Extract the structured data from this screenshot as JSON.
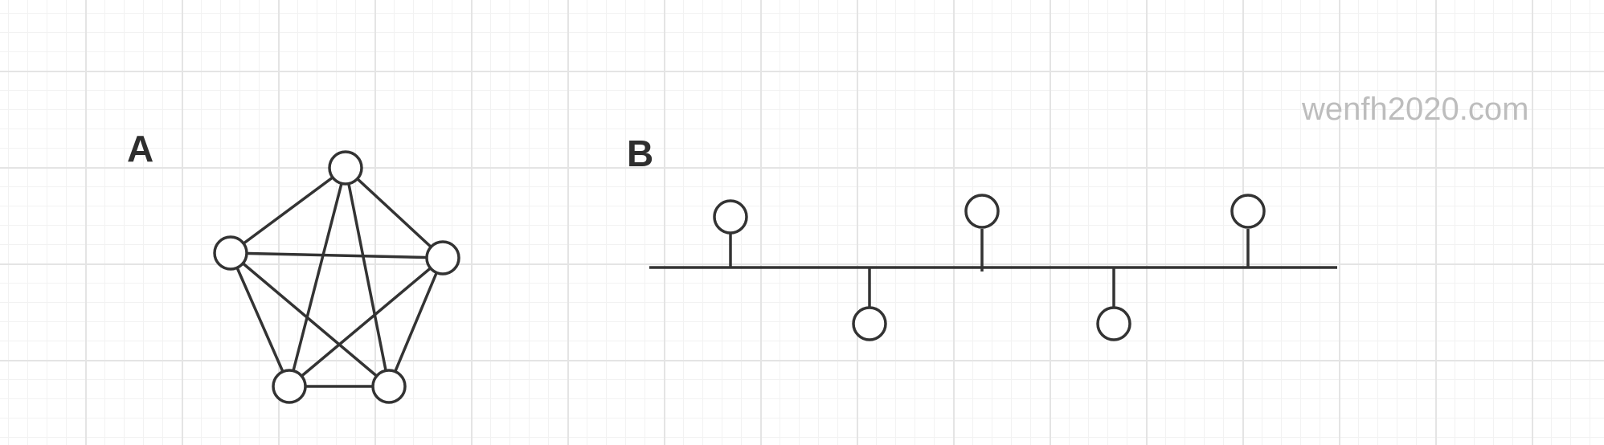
{
  "diagrams": {
    "a": {
      "label": "A",
      "type": "fully-connected"
    },
    "b": {
      "label": "B",
      "type": "bus"
    }
  },
  "watermark": "wenfh2020.com",
  "colors": {
    "stroke": "#333333",
    "label": "#2e2e2e",
    "watermark": "#bdbdbd",
    "grid_major": "#e4e4e4",
    "grid_minor": "#f2f2f2"
  }
}
